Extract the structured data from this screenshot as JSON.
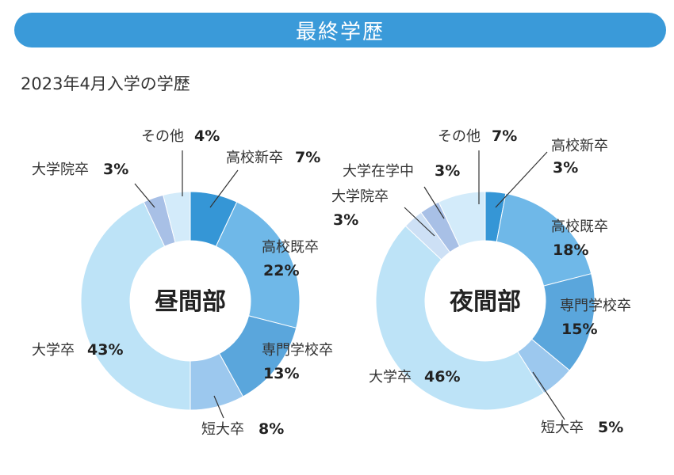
{
  "header": {
    "title": "最終学歴"
  },
  "subtitle": "2023年4月入学の学歴",
  "chart_data": [
    {
      "type": "pie",
      "center_label": "昼間部",
      "categories": [
        "高校新卒",
        "高校既卒",
        "専門学校卒",
        "短大卒",
        "大学卒",
        "大学院卒",
        "その他"
      ],
      "values": [
        7,
        22,
        13,
        8,
        43,
        3,
        4
      ],
      "value_labels": [
        "7%",
        "22%",
        "13%",
        "8%",
        "43%",
        "3%",
        "4%"
      ],
      "colors": [
        "#3596d6",
        "#6fb8e8",
        "#5aa6dc",
        "#9cc8ee",
        "#bde3f7",
        "#a8c0e6",
        "#d3ebfa"
      ]
    },
    {
      "type": "pie",
      "center_label": "夜間部",
      "categories": [
        "高校新卒",
        "高校既卒",
        "専門学校卒",
        "短大卒",
        "大学卒",
        "大学院卒",
        "大学在学中",
        "その他"
      ],
      "values": [
        3,
        18,
        15,
        5,
        46,
        3,
        3,
        7
      ],
      "value_labels": [
        "3%",
        "18%",
        "15%",
        "5%",
        "46%",
        "3%",
        "3%",
        "7%"
      ],
      "colors": [
        "#3596d6",
        "#6fb8e8",
        "#5aa6dc",
        "#9cc8ee",
        "#bde3f7",
        "#cde0f5",
        "#a8c0e6",
        "#d3ebfa"
      ]
    }
  ]
}
